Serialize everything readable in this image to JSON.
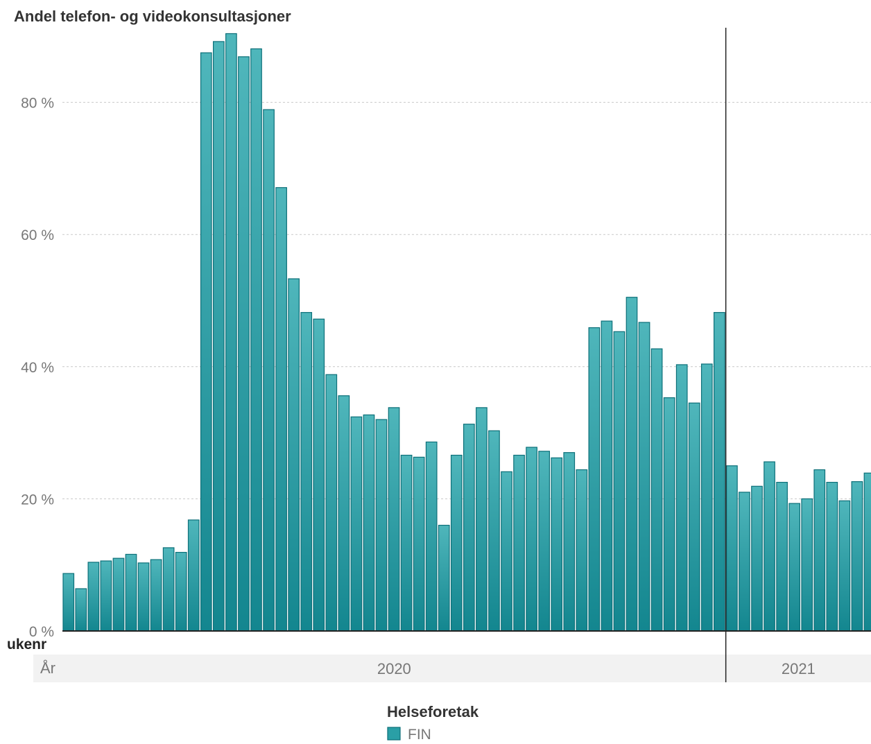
{
  "chart_data": {
    "type": "bar",
    "title": "Andel telefon- og videokonsultasjoner",
    "xlabel": "ukenr",
    "ylabel": "",
    "ylim": [
      0,
      90
    ],
    "yticks": [
      0,
      20,
      40,
      60,
      80
    ],
    "ytick_labels": [
      "0 %",
      "20 %",
      "40 %",
      "60 %",
      "80 %"
    ],
    "grid": true,
    "colors": {
      "bar_fill": "#2a9fa6",
      "bar_stroke": "#0c6f78",
      "band": "#f2f2f2",
      "divider": "#222222",
      "grid": "#c8c8c8"
    },
    "year_axis_label": "År",
    "year_groups": [
      {
        "label": "2020",
        "count": 53
      },
      {
        "label": "2021",
        "count": 12
      }
    ],
    "series": [
      {
        "name": "FIN",
        "values": [
          8.7,
          6.4,
          10.4,
          10.6,
          11.0,
          11.6,
          10.3,
          10.8,
          12.6,
          11.9,
          16.8,
          87.5,
          89.2,
          90.4,
          86.9,
          88.1,
          78.9,
          67.1,
          53.3,
          48.2,
          47.2,
          38.8,
          35.6,
          32.4,
          32.7,
          32.0,
          33.8,
          26.6,
          26.3,
          28.6,
          16.0,
          26.6,
          31.3,
          33.8,
          30.3,
          24.1,
          26.6,
          27.8,
          27.2,
          26.2,
          27.0,
          24.4,
          45.9,
          46.9,
          45.3,
          50.5,
          46.7,
          42.7,
          35.3,
          40.3,
          34.5,
          40.4,
          48.2,
          25.0,
          21.0,
          21.9,
          25.6,
          22.5,
          19.3,
          20.0,
          24.4,
          22.5,
          19.7,
          22.6,
          23.9
        ]
      }
    ],
    "legend": {
      "title": "Helseforetak",
      "position": "bottom"
    }
  }
}
